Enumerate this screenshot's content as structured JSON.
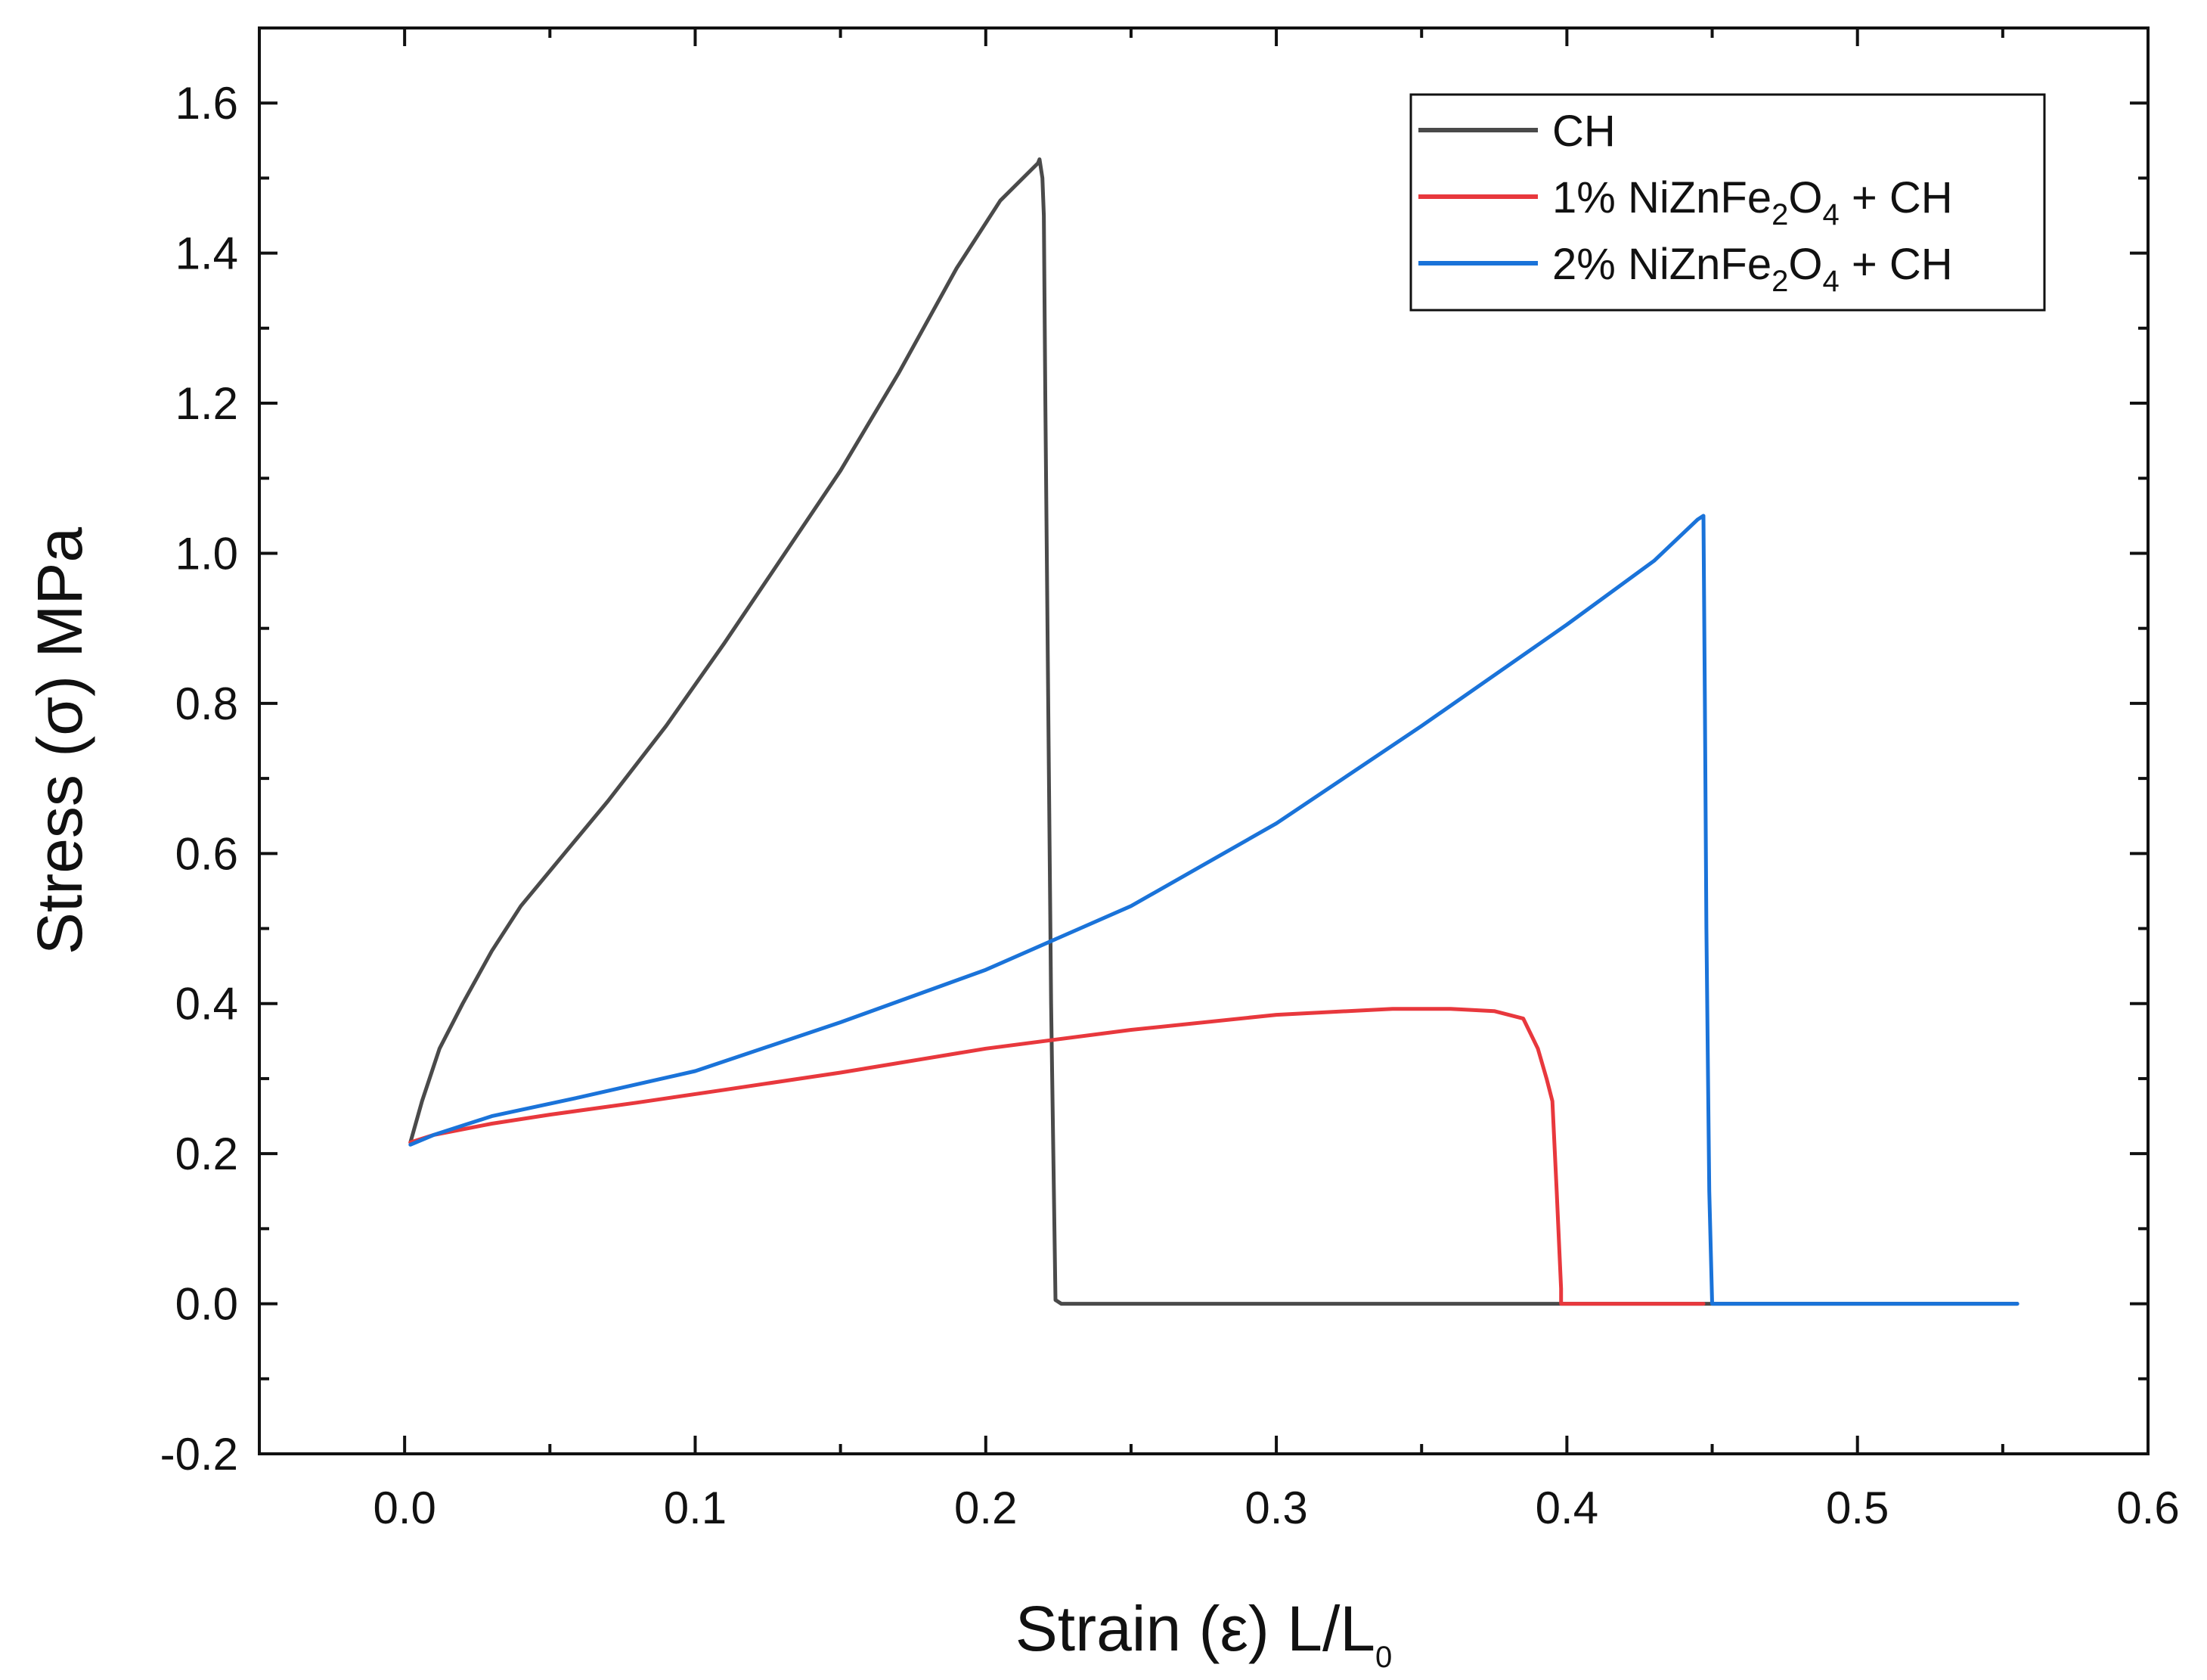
{
  "chart_data": {
    "type": "line",
    "title": "",
    "xlabel": {
      "text": "Strain (ε) L/L",
      "subscript": "0"
    },
    "ylabel": "Stress (σ) MPa",
    "xlim": [
      -0.05,
      0.6
    ],
    "ylim": [
      -0.2,
      1.7
    ],
    "xticks": [
      0.0,
      0.1,
      0.2,
      0.3,
      0.4,
      0.5,
      0.6
    ],
    "xtick_labels": [
      "0.0",
      "0.1",
      "0.2",
      "0.3",
      "0.4",
      "0.5",
      "0.6"
    ],
    "yticks": [
      -0.2,
      0.0,
      0.2,
      0.4,
      0.6,
      0.8,
      1.0,
      1.2,
      1.4,
      1.6
    ],
    "ytick_labels": [
      "-0.2",
      "0.0",
      "0.2",
      "0.4",
      "0.6",
      "0.8",
      "1.0",
      "1.2",
      "1.4",
      "1.6"
    ],
    "grid": false,
    "legend_position": "top-right",
    "series": [
      {
        "name": "CH",
        "legend": [
          {
            "t": "CH"
          }
        ],
        "color": "#4a4a4a",
        "x": [
          0.002,
          0.006,
          0.012,
          0.02,
          0.03,
          0.04,
          0.055,
          0.07,
          0.09,
          0.11,
          0.13,
          0.15,
          0.17,
          0.19,
          0.205,
          0.218,
          0.2185,
          0.2195,
          0.22,
          0.2205,
          0.2215,
          0.2225,
          0.224,
          0.226,
          0.25,
          0.3,
          0.35,
          0.4,
          0.45,
          0.5,
          0.555
        ],
        "y": [
          0.215,
          0.27,
          0.34,
          0.4,
          0.47,
          0.53,
          0.6,
          0.67,
          0.77,
          0.88,
          0.995,
          1.11,
          1.24,
          1.38,
          1.47,
          1.52,
          1.525,
          1.5,
          1.45,
          1.2,
          0.8,
          0.4,
          0.005,
          0.0,
          0.0,
          0.0,
          0.0,
          0.0,
          0.0,
          0.0,
          0.0
        ]
      },
      {
        "name": "1% NiZnFe2O4 + CH",
        "legend": [
          {
            "t": "1% NiZnFe"
          },
          {
            "t": "2",
            "sub": true
          },
          {
            "t": "O"
          },
          {
            "t": "4",
            "sub": true
          },
          {
            "t": " + CH"
          }
        ],
        "color": "#e8383d",
        "x": [
          0.002,
          0.01,
          0.03,
          0.05,
          0.08,
          0.11,
          0.15,
          0.2,
          0.25,
          0.3,
          0.34,
          0.36,
          0.375,
          0.385,
          0.39,
          0.393,
          0.395,
          0.3965,
          0.398,
          0.398,
          0.42,
          0.447
        ],
        "y": [
          0.215,
          0.225,
          0.24,
          0.252,
          0.268,
          0.285,
          0.308,
          0.34,
          0.365,
          0.385,
          0.393,
          0.393,
          0.39,
          0.38,
          0.34,
          0.3,
          0.27,
          0.15,
          0.02,
          0.0,
          0.0,
          0.0
        ]
      },
      {
        "name": "2% NiZnFe2O4 + CH",
        "legend": [
          {
            "t": "2% NiZnFe"
          },
          {
            "t": "2",
            "sub": true
          },
          {
            "t": "O"
          },
          {
            "t": "4",
            "sub": true
          },
          {
            "t": " + CH"
          }
        ],
        "color": "#1a73d9",
        "x": [
          0.002,
          0.01,
          0.03,
          0.06,
          0.1,
          0.15,
          0.2,
          0.25,
          0.3,
          0.35,
          0.4,
          0.43,
          0.445,
          0.447,
          0.4475,
          0.448,
          0.449,
          0.45,
          0.46,
          0.5,
          0.555
        ],
        "y": [
          0.212,
          0.225,
          0.25,
          0.275,
          0.31,
          0.375,
          0.445,
          0.53,
          0.64,
          0.77,
          0.905,
          0.99,
          1.045,
          1.05,
          0.8,
          0.5,
          0.15,
          0.0,
          0.0,
          0.0,
          0.0
        ]
      }
    ]
  }
}
